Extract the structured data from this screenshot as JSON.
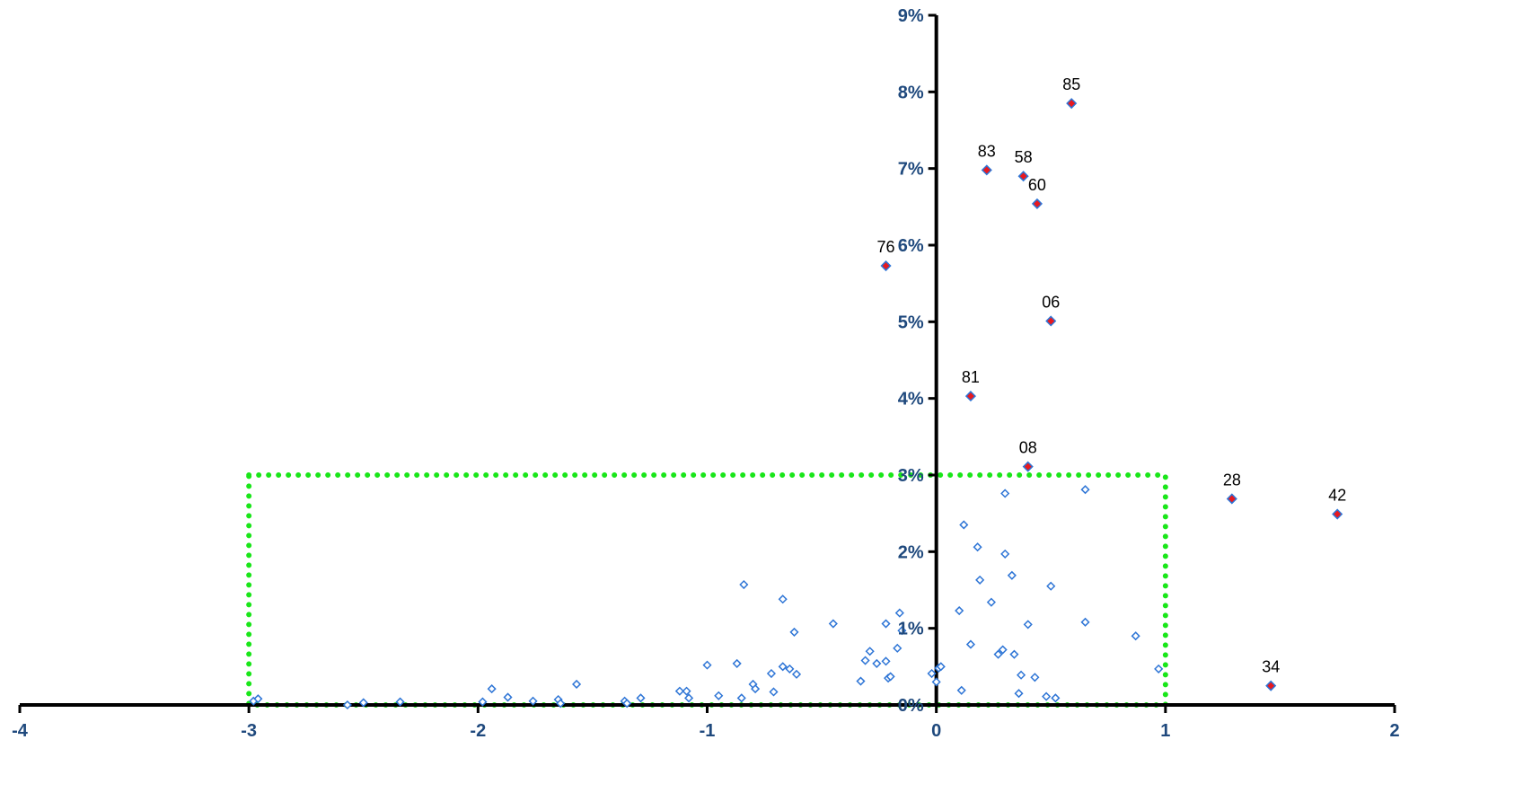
{
  "chart_data": {
    "type": "scatter",
    "xlim": [
      -4,
      2
    ],
    "ylim": [
      0,
      9
    ],
    "x_ticks": [
      {
        "value": -4,
        "label": "-4"
      },
      {
        "value": -3,
        "label": "-3"
      },
      {
        "value": -2,
        "label": "-2"
      },
      {
        "value": -1,
        "label": "-1"
      },
      {
        "value": 0,
        "label": "0"
      },
      {
        "value": 1,
        "label": "1"
      },
      {
        "value": 2,
        "label": "2"
      }
    ],
    "y_ticks": [
      {
        "value": 0,
        "label": "0%"
      },
      {
        "value": 1,
        "label": "1%"
      },
      {
        "value": 2,
        "label": "2%"
      },
      {
        "value": 3,
        "label": "3%"
      },
      {
        "value": 4,
        "label": "4%"
      },
      {
        "value": 5,
        "label": "5%"
      },
      {
        "value": 6,
        "label": "6%"
      },
      {
        "value": 7,
        "label": "7%"
      },
      {
        "value": 8,
        "label": "8%"
      },
      {
        "value": 9,
        "label": "9%"
      }
    ],
    "grid": false,
    "colors": {
      "axis": "#000000",
      "tick_label": "#1f497d",
      "marker_outline": "#2e75d6",
      "highlight_fill": "#e8191f",
      "highlight_outline": "#2e75d6",
      "region": "#19e619"
    },
    "highlight_region": {
      "x": [
        -3,
        1
      ],
      "y": [
        0,
        3
      ]
    },
    "series": [
      {
        "marker": "hollow-diamond",
        "points": [
          [
            -2.98,
            0.05
          ],
          [
            -2.96,
            0.08
          ],
          [
            -2.57,
            0.0
          ],
          [
            -2.5,
            0.03
          ],
          [
            -2.34,
            0.04
          ],
          [
            -1.98,
            0.04
          ],
          [
            -1.94,
            0.21
          ],
          [
            -1.87,
            0.1
          ],
          [
            -1.76,
            0.05
          ],
          [
            -1.65,
            0.07
          ],
          [
            -1.64,
            0.02
          ],
          [
            -1.57,
            0.27
          ],
          [
            -1.36,
            0.05
          ],
          [
            -1.35,
            0.02
          ],
          [
            -1.29,
            0.09
          ],
          [
            -1.12,
            0.18
          ],
          [
            -1.09,
            0.18
          ],
          [
            -1.08,
            0.09
          ],
          [
            -1.0,
            0.52
          ],
          [
            -0.95,
            0.12
          ],
          [
            -0.87,
            0.54
          ],
          [
            -0.85,
            0.09
          ],
          [
            -0.84,
            1.57
          ],
          [
            -0.8,
            0.27
          ],
          [
            -0.79,
            0.21
          ],
          [
            -0.72,
            0.41
          ],
          [
            -0.71,
            0.17
          ],
          [
            -0.67,
            0.5
          ],
          [
            -0.67,
            1.38
          ],
          [
            -0.64,
            0.47
          ],
          [
            -0.62,
            0.95
          ],
          [
            -0.61,
            0.4
          ],
          [
            -0.45,
            1.06
          ],
          [
            -0.33,
            0.31
          ],
          [
            -0.31,
            0.58
          ],
          [
            -0.29,
            0.7
          ],
          [
            -0.26,
            0.54
          ],
          [
            -0.22,
            0.57
          ],
          [
            -0.22,
            1.06
          ],
          [
            -0.21,
            0.35
          ],
          [
            -0.2,
            0.37
          ],
          [
            -0.17,
            0.74
          ],
          [
            -0.16,
            1.2
          ],
          [
            -0.15,
            0.97
          ],
          [
            -0.02,
            0.41
          ],
          [
            0.0,
            0.3
          ],
          [
            0.01,
            0.48
          ],
          [
            0.02,
            0.5
          ],
          [
            0.1,
            1.23
          ],
          [
            0.11,
            0.19
          ],
          [
            0.12,
            2.35
          ],
          [
            0.15,
            0.79
          ],
          [
            0.18,
            2.06
          ],
          [
            0.19,
            1.63
          ],
          [
            0.24,
            1.34
          ],
          [
            0.27,
            0.66
          ],
          [
            0.29,
            0.72
          ],
          [
            0.3,
            1.97
          ],
          [
            0.3,
            2.76
          ],
          [
            0.33,
            1.69
          ],
          [
            0.34,
            0.66
          ],
          [
            0.36,
            0.15
          ],
          [
            0.37,
            0.39
          ],
          [
            0.4,
            1.05
          ],
          [
            0.43,
            0.36
          ],
          [
            0.48,
            0.11
          ],
          [
            0.5,
            1.55
          ],
          [
            0.52,
            0.09
          ],
          [
            0.65,
            2.81
          ],
          [
            0.65,
            1.08
          ],
          [
            0.87,
            0.9
          ],
          [
            0.97,
            0.47
          ]
        ]
      },
      {
        "marker": "filled-diamond",
        "points": [
          {
            "x": -0.22,
            "y": 5.73,
            "label": "76"
          },
          {
            "x": 0.15,
            "y": 4.03,
            "label": "81"
          },
          {
            "x": 0.22,
            "y": 6.98,
            "label": "83"
          },
          {
            "x": 0.38,
            "y": 6.9,
            "label": "58"
          },
          {
            "x": 0.4,
            "y": 3.11,
            "label": "08"
          },
          {
            "x": 0.44,
            "y": 6.54,
            "label": "60"
          },
          {
            "x": 0.5,
            "y": 5.01,
            "label": "06"
          },
          {
            "x": 0.59,
            "y": 7.85,
            "label": "85"
          },
          {
            "x": 1.29,
            "y": 2.69,
            "label": "28"
          },
          {
            "x": 1.46,
            "y": 0.25,
            "label": "34"
          },
          {
            "x": 1.75,
            "y": 2.49,
            "label": "42"
          }
        ]
      }
    ]
  }
}
